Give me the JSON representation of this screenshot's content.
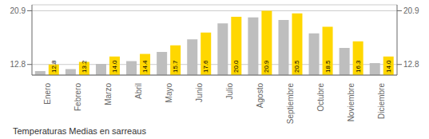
{
  "chart_data": {
    "type": "bar",
    "title": "Temperaturas Medias en sarreaus",
    "categories": [
      "Enero",
      "Febrero",
      "Marzo",
      "Abril",
      "Mayo",
      "Junio",
      "Julio",
      "Agosto",
      "Septiembre",
      "Octubre",
      "Noviembre",
      "Diciembre"
    ],
    "series": [
      {
        "color": "#BEBEBE",
        "values": [
          11.8,
          12.1,
          12.9,
          13.3,
          14.7,
          16.6,
          19.0,
          19.9,
          19.5,
          17.5,
          15.3,
          13.0
        ]
      },
      {
        "color": "#FFD700",
        "values": [
          12.8,
          13.2,
          14.0,
          14.4,
          15.7,
          17.6,
          20.0,
          20.9,
          20.5,
          18.5,
          16.3,
          14.0
        ],
        "data_labels": true,
        "value_labels": [
          "12.8",
          "13.2",
          "14.0",
          "14.4",
          "15.7",
          "17.6",
          "20.0",
          "20.9",
          "20.5",
          "18.5",
          "16.3",
          "14.0"
        ]
      }
    ],
    "ylim": [
      11.2,
      21.8
    ],
    "yticks": [
      12.8,
      20.9
    ],
    "y2lim": [
      11.2,
      21.8
    ],
    "y2ticks": [
      12.8,
      20.9
    ],
    "grid": true
  }
}
